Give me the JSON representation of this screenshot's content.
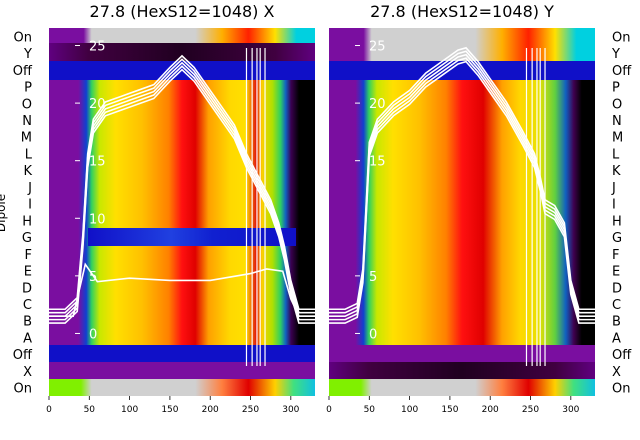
{
  "chart_data": [
    {
      "type": "heatmap",
      "title": "27.8 (HexS12=1048) X",
      "ylabel": "Dipole",
      "rows": [
        "On",
        "X",
        "Off",
        "A",
        "B",
        "C",
        "D",
        "E",
        "F",
        "G",
        "H",
        "I",
        "J",
        "K",
        "L",
        "M",
        "N",
        "O",
        "P",
        "Off",
        "Y",
        "On"
      ],
      "xlim": [
        0,
        330
      ],
      "xticks": [
        0,
        50,
        100,
        150,
        200,
        250,
        300
      ],
      "overlay_ylim": [
        -3,
        26
      ],
      "overlay_yticks": [
        0,
        5,
        10,
        15,
        20,
        25
      ],
      "overlay_ticks_visible": [
        0,
        5,
        10,
        15,
        20,
        25
      ],
      "overlay_profile": {
        "x": [
          0,
          20,
          35,
          42,
          48,
          55,
          70,
          90,
          110,
          130,
          150,
          165,
          180,
          200,
          215,
          230,
          245,
          260,
          275,
          285,
          292,
          300,
          310,
          330
        ],
        "y": [
          1.5,
          1.5,
          2.5,
          8,
          15,
          18,
          19.5,
          20,
          20.5,
          21,
          22.5,
          23.5,
          22.5,
          20.5,
          19,
          17.5,
          15,
          13,
          11,
          9,
          7,
          4,
          1.5,
          1.5
        ]
      },
      "overlay_flat": {
        "x": [
          0,
          30,
          45,
          60,
          100,
          150,
          200,
          250,
          270,
          290,
          300,
          310,
          330
        ],
        "y": [
          1.5,
          1.5,
          6,
          4.5,
          4.8,
          4.6,
          4.6,
          5.2,
          5.6,
          5.4,
          3,
          1.5,
          1.5
        ]
      }
    },
    {
      "type": "heatmap",
      "title": "27.8 (HexS12=1048) Y",
      "rows": [
        "On",
        "X",
        "Off",
        "A",
        "B",
        "C",
        "D",
        "E",
        "F",
        "G",
        "H",
        "I",
        "J",
        "K",
        "L",
        "M",
        "N",
        "O",
        "P",
        "Off",
        "Y",
        "On"
      ],
      "xlim": [
        0,
        330
      ],
      "xticks": [
        0,
        50,
        100,
        150,
        200,
        250,
        300
      ],
      "overlay_ylim": [
        -3,
        26
      ],
      "overlay_yticks": [
        0,
        5,
        10,
        15,
        20,
        25
      ],
      "overlay_ticks_visible": [
        0,
        5,
        15,
        20,
        25
      ],
      "overlay_profile": {
        "x": [
          0,
          20,
          35,
          42,
          50,
          60,
          80,
          100,
          120,
          140,
          160,
          170,
          185,
          200,
          220,
          240,
          255,
          262,
          268,
          280,
          292,
          300,
          310,
          330
        ],
        "y": [
          1.5,
          1.5,
          2,
          5,
          16,
          18,
          19.5,
          20.5,
          22,
          23,
          24,
          24.2,
          23,
          21.5,
          19.5,
          17,
          15,
          13,
          11,
          10.5,
          9,
          4,
          1.5,
          1.5
        ]
      }
    }
  ],
  "colors": {
    "background": "#ffffff",
    "overlay": "#ffffff",
    "band_purple": "#7a0ea0",
    "band_blue": "#1010c8"
  }
}
